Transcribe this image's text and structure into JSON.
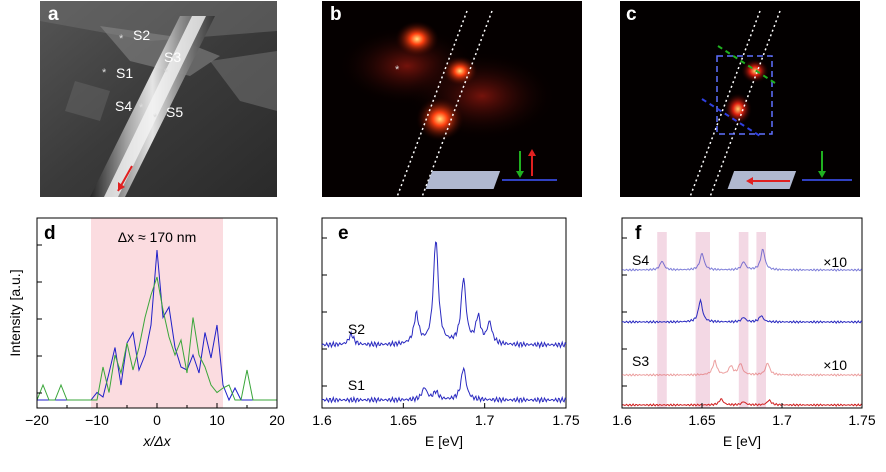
{
  "figure": {
    "panels": {
      "a": {
        "label": "a",
        "points": [
          "S1",
          "S2",
          "S3",
          "S4",
          "S5"
        ]
      },
      "b": {
        "label": "b"
      },
      "c": {
        "label": "c"
      },
      "d": {
        "label": "d",
        "annotation": "Δx ≈ 170 nm"
      },
      "e": {
        "label": "e"
      },
      "f": {
        "label": "f",
        "scale_top": "×10",
        "scale_bottom": "×10"
      }
    }
  },
  "chart_data": [
    {
      "panel": "d",
      "type": "line",
      "xlabel": "x/Δx",
      "ylabel": "Intensity [a.u.]",
      "xlim": [
        -20,
        20
      ],
      "xticks": [
        "−20",
        "−10",
        "0",
        "10",
        "20"
      ],
      "shaded_region": [
        -11,
        11
      ],
      "annotation": "Δx ≈ 170 nm",
      "series": [
        {
          "color": "#2020c8",
          "x": [
            -20,
            -19,
            -18,
            -17,
            -16,
            -15,
            -14,
            -13,
            -12,
            -11,
            -10,
            -9,
            -8,
            -7,
            -6,
            -5,
            -4,
            -3,
            -2,
            -1,
            0,
            1,
            2,
            3,
            4,
            5,
            6,
            7,
            8,
            9,
            10,
            11,
            12,
            13,
            14,
            15,
            16,
            17,
            18,
            19,
            20
          ],
          "y": [
            0.0,
            0.0,
            0.0,
            0.0,
            0.0,
            0.0,
            0.0,
            0.0,
            0.0,
            0.0,
            0.05,
            0.02,
            0.18,
            0.35,
            0.1,
            0.38,
            0.45,
            0.2,
            0.3,
            0.5,
            1.0,
            0.55,
            0.62,
            0.35,
            0.22,
            0.2,
            0.3,
            0.18,
            0.45,
            0.28,
            0.5,
            0.1,
            0.0,
            0.08,
            0.0,
            0.0,
            0.0,
            0.0,
            0.0,
            0.0,
            0.0
          ]
        },
        {
          "color": "#3aa63a",
          "x": [
            -20,
            -19,
            -18,
            -17,
            -16,
            -15,
            -14,
            -13,
            -12,
            -11,
            -10,
            -9,
            -8,
            -7,
            -6,
            -5,
            -4,
            -3,
            -2,
            -1,
            0,
            1,
            2,
            3,
            4,
            5,
            6,
            7,
            8,
            9,
            10,
            11,
            12,
            13,
            14,
            15,
            16,
            17,
            18,
            19,
            20
          ],
          "y": [
            0.0,
            0.1,
            0.0,
            0.0,
            0.1,
            0.0,
            0.0,
            0.0,
            0.0,
            0.0,
            0.0,
            0.22,
            0.05,
            0.3,
            0.18,
            0.38,
            0.2,
            0.35,
            0.55,
            0.7,
            0.82,
            0.6,
            0.42,
            0.3,
            0.4,
            0.18,
            0.55,
            0.3,
            0.22,
            0.1,
            0.05,
            0.08,
            0.1,
            0.0,
            0.0,
            0.2,
            0.0,
            0.0,
            0.0,
            0.0,
            0.0
          ]
        }
      ]
    },
    {
      "panel": "e",
      "type": "line",
      "xlabel": "E [eV]",
      "xlim": [
        1.6,
        1.75
      ],
      "xticks": [
        "1.6",
        "1.65",
        "1.7",
        "1.75"
      ],
      "series": [
        {
          "name": "S2",
          "color": "#2a2ac0",
          "peaks": [
            [
              1.618,
              0.1
            ],
            [
              1.658,
              0.28
            ],
            [
              1.67,
              1.0
            ],
            [
              1.687,
              0.62
            ],
            [
              1.696,
              0.25
            ],
            [
              1.703,
              0.2
            ]
          ]
        },
        {
          "name": "S1",
          "color": "#2a2ac0",
          "peaks": [
            [
              1.663,
              0.12
            ],
            [
              1.67,
              0.08
            ],
            [
              1.687,
              0.32
            ]
          ]
        }
      ]
    },
    {
      "panel": "f",
      "type": "line",
      "xlabel": "E [eV]",
      "xlim": [
        1.6,
        1.75
      ],
      "xticks": [
        "1.6",
        "1.65",
        "1.7",
        "1.75"
      ],
      "shaded_bands": [
        [
          1.622,
          1.628
        ],
        [
          1.646,
          1.655
        ],
        [
          1.673,
          1.679
        ],
        [
          1.684,
          1.69
        ]
      ],
      "series": [
        {
          "name": "S4",
          "color": "#2a2ac0",
          "scale": "×10",
          "peaks": [
            [
              1.625,
              0.22
            ],
            [
              1.65,
              0.42
            ],
            [
              1.676,
              0.2
            ],
            [
              1.688,
              0.52
            ]
          ]
        },
        {
          "name": "S4",
          "color": "#2a2ac0",
          "scale": "1",
          "peaks": [
            [
              1.649,
              0.48
            ],
            [
              1.676,
              0.1
            ],
            [
              1.687,
              0.14
            ]
          ]
        },
        {
          "name": "S3",
          "color": "#e06060",
          "scale": "×10",
          "peaks": [
            [
              1.658,
              0.35
            ],
            [
              1.668,
              0.22
            ],
            [
              1.674,
              0.28
            ],
            [
              1.691,
              0.3
            ]
          ]
        },
        {
          "name": "S3",
          "color": "#d02020",
          "scale": "1",
          "peaks": [
            [
              1.662,
              0.15
            ],
            [
              1.676,
              0.08
            ],
            [
              1.692,
              0.12
            ]
          ]
        }
      ]
    }
  ]
}
